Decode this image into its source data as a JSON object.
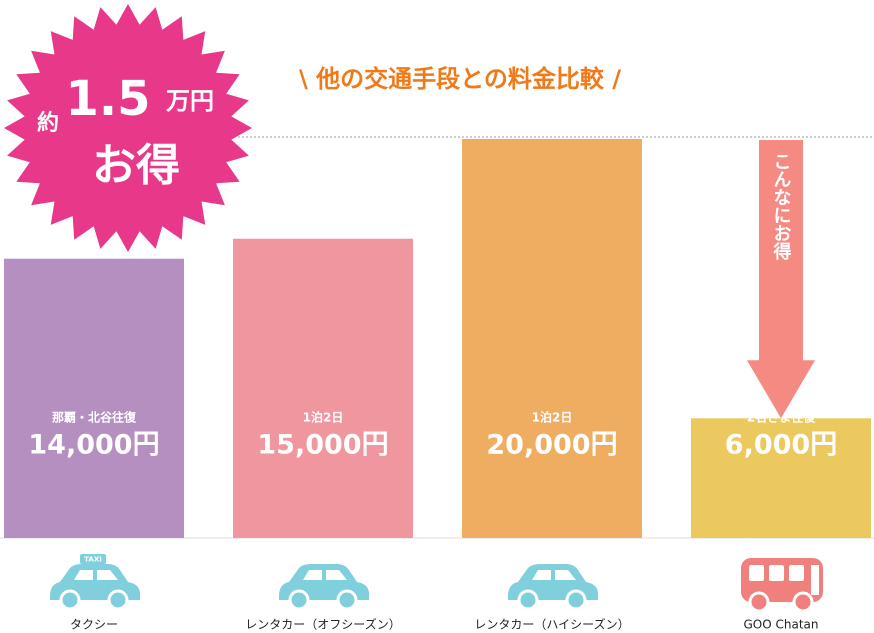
{
  "chart_data": {
    "type": "bar",
    "title": "\\ 他の交通手段との料金比較 /",
    "categories": [
      "タクシー",
      "レンタカー（オフシーズン）",
      "レンタカー（ハイシーズン）",
      "GOO Chatan"
    ],
    "sublabels": [
      "那覇・北谷往復",
      "1泊2日",
      "1泊2日",
      "2名さま往復"
    ],
    "values": [
      14000,
      15000,
      20000,
      6000
    ],
    "value_labels": [
      "14,000円",
      "15,000円",
      "20,000円",
      "6,000円"
    ],
    "colors": [
      "#b48fc0",
      "#f0969e",
      "#efad62",
      "#ecc95f"
    ],
    "ylim": [
      0,
      20000
    ],
    "badge": {
      "prefix": "約",
      "amount": "1.5",
      "unit": "万円",
      "suffix": "お得"
    },
    "annotation": "こんなにお得",
    "icon_text": "TAXI"
  }
}
